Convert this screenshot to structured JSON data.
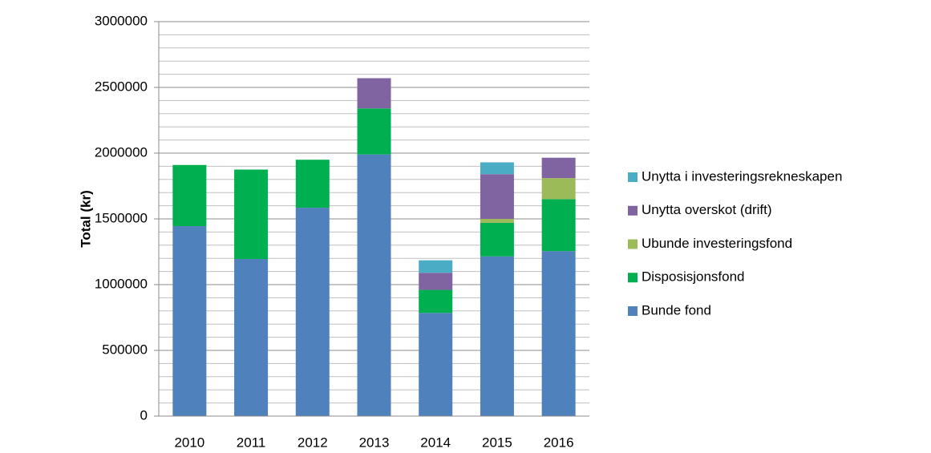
{
  "chart_data": {
    "type": "stacked_bar",
    "categories": [
      "2010",
      "2011",
      "2012",
      "2013",
      "2014",
      "2015",
      "2016"
    ],
    "series": [
      {
        "name": "Bunde fond",
        "color": "#4f81bd",
        "values": [
          1445000,
          1195000,
          1585000,
          1990000,
          785000,
          1215000,
          1255000
        ]
      },
      {
        "name": "Disposisjonsfond",
        "color": "#00b050",
        "values": [
          465000,
          680000,
          365000,
          350000,
          175000,
          255000,
          395000
        ]
      },
      {
        "name": "Ubunde investeringsfond",
        "color": "#9bbb59",
        "values": [
          null,
          null,
          null,
          null,
          null,
          30000,
          160000
        ]
      },
      {
        "name": "Unytta overskot (drift)",
        "color": "#8064a2",
        "values": [
          null,
          null,
          null,
          230000,
          130000,
          340000,
          155000
        ]
      },
      {
        "name": "Unytta i investeringsrekneskapen",
        "color": "#4bacc6",
        "values": [
          null,
          null,
          null,
          null,
          95000,
          90000,
          null
        ]
      }
    ],
    "y_label": "Total (kr)",
    "ylim": [
      0,
      3000000
    ],
    "yticks": [
      0,
      500000,
      1000000,
      1500000,
      2000000,
      2500000,
      3000000
    ],
    "minor_yticks": [
      100000,
      200000,
      300000,
      400000,
      600000,
      700000,
      800000,
      900000,
      1100000,
      1200000,
      1300000,
      1400000,
      1600000,
      1700000,
      1800000,
      1900000,
      2100000,
      2200000,
      2300000,
      2400000,
      2600000,
      2700000,
      2800000,
      2900000
    ],
    "grid": true,
    "legend": "right"
  }
}
